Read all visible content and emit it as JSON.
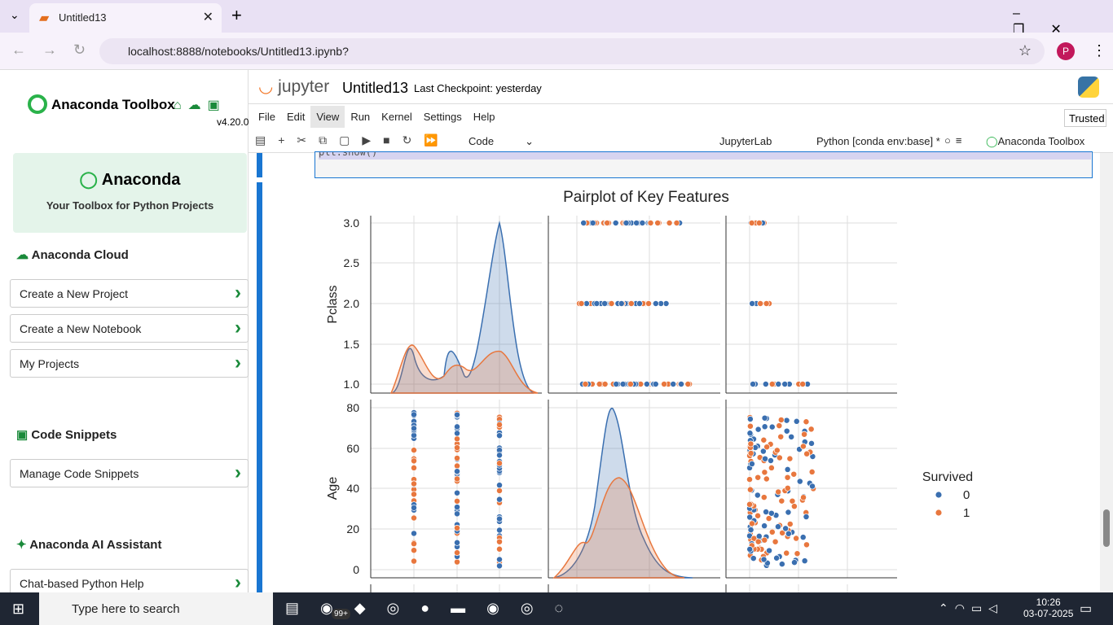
{
  "browser": {
    "tab_title": "Untitled13",
    "url": "localhost:8888/notebooks/Untitled13.ipynb?",
    "profile": "P"
  },
  "sidebar": {
    "title": "Anaconda Toolbox",
    "version": "v4.20.0",
    "card_title": "Anaconda",
    "card_subtitle": "Your Toolbox for Python Projects",
    "sections": [
      {
        "heading": "Anaconda Cloud",
        "items": [
          "Create a New Project",
          "Create a New Notebook",
          "My Projects"
        ]
      },
      {
        "heading": "Code Snippets",
        "items": [
          "Manage Code Snippets"
        ]
      },
      {
        "heading": "Anaconda AI Assistant",
        "items": [
          "Chat-based Python Help"
        ]
      }
    ]
  },
  "jupyter": {
    "logo": "jupyter",
    "notebook": "Untitled13",
    "checkpoint": "Last Checkpoint: yesterday",
    "menu": [
      "File",
      "Edit",
      "View",
      "Run",
      "Kernel",
      "Settings",
      "Help"
    ],
    "trusted": "Trusted",
    "cell_type": "Code",
    "jupyterlab": "JupyterLab",
    "kernel": "Python [conda env:base] *",
    "toolbox": "Anaconda Toolbox",
    "code_fragment": "plt.show()"
  },
  "figure": {
    "title": "Pairplot of Key Features",
    "ylabels": [
      "Pclass",
      "Age"
    ],
    "pclass_ticks": [
      "3.0",
      "2.5",
      "2.0",
      "1.5",
      "1.0"
    ],
    "age_ticks": [
      "80",
      "60",
      "40",
      "20",
      "0"
    ],
    "legend_title": "Survived",
    "legend": [
      "0",
      "1"
    ]
  },
  "taskbar": {
    "search": "Type here to search",
    "badge": "99+",
    "time": "10:26",
    "date": "03-07-2025"
  }
}
